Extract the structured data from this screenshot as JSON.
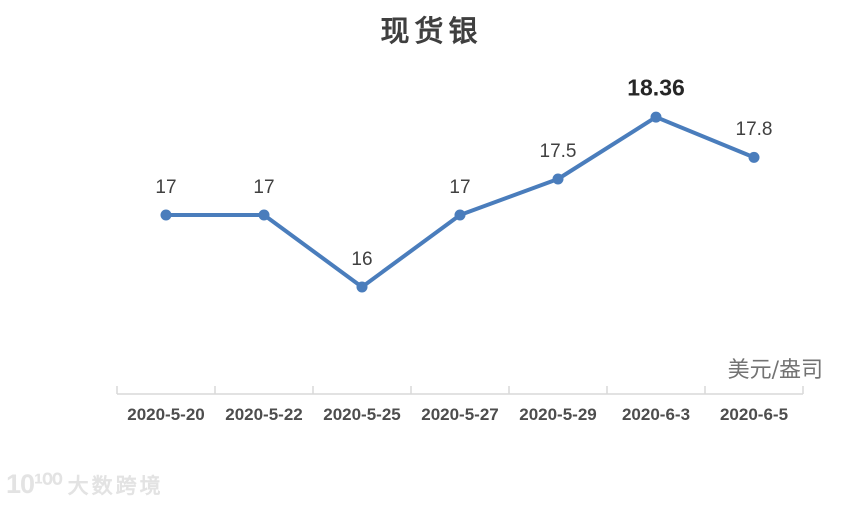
{
  "page": {
    "background_color": "#ffffff"
  },
  "chart_data": {
    "type": "line",
    "title": "现货银",
    "unit_label": "美元/盎司",
    "categories": [
      "2020-5-20",
      "2020-5-22",
      "2020-5-25",
      "2020-5-27",
      "2020-5-29",
      "2020-6-3",
      "2020-6-5"
    ],
    "series": [
      {
        "name": "现货银",
        "values": [
          17,
          17,
          16,
          17,
          17.5,
          18.36,
          17.8
        ]
      }
    ],
    "data_labels": [
      "17",
      "17",
      "16",
      "17",
      "17.5",
      "18.36",
      "17.8"
    ],
    "emphasized_label_index": 5,
    "line_color": "#4a7dbc",
    "marker_color": "#4a7dbc",
    "axis_color": "#d9d9d9",
    "label_color": "#404040",
    "x_label_color": "#4d4d4d",
    "gridlines": false,
    "y_axis_visible": false,
    "legend": "none",
    "xlabel": "",
    "ylabel": ""
  },
  "watermark": {
    "logo_text": "10¹⁰⁰",
    "brand_text": "大数跨境"
  }
}
